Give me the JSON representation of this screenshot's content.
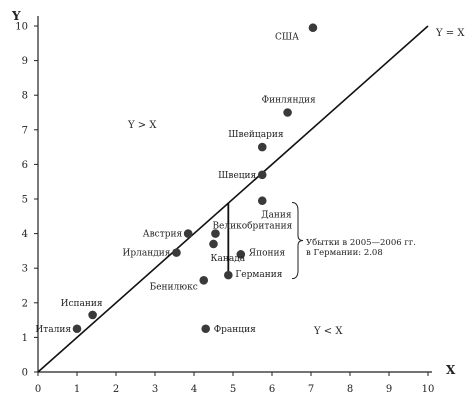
{
  "chart_data": {
    "type": "scatter",
    "xlabel": "X",
    "ylabel": "Y",
    "xlim": [
      0,
      10
    ],
    "ylim": [
      0,
      10
    ],
    "x_ticks": [
      "0",
      "1",
      "2",
      "3",
      "4",
      "5",
      "6",
      "7",
      "8",
      "9",
      "10"
    ],
    "y_ticks": [
      "0",
      "1",
      "2",
      "3",
      "4",
      "5",
      "6",
      "7",
      "8",
      "9",
      "10"
    ],
    "diagonal_label": "Y = X",
    "region_above_label": "Y > X",
    "region_below_label": "Y < X",
    "points": [
      {
        "label": "США",
        "x": 7.05,
        "y": 9.95
      },
      {
        "label": "Финляндия",
        "x": 6.4,
        "y": 7.5
      },
      {
        "label": "Швейцария",
        "x": 5.75,
        "y": 6.5
      },
      {
        "label": "Швеция",
        "x": 5.75,
        "y": 5.7
      },
      {
        "label": "Дания",
        "x": 5.75,
        "y": 4.95
      },
      {
        "label": "Великобритания",
        "x": 4.55,
        "y": 4.0
      },
      {
        "label": "Австрия",
        "x": 3.85,
        "y": 4.0
      },
      {
        "label": "Ирландия",
        "x": 3.55,
        "y": 3.45
      },
      {
        "label": "Канада",
        "x": 4.5,
        "y": 3.7
      },
      {
        "label": "Япония",
        "x": 5.2,
        "y": 3.4
      },
      {
        "label": "Германия",
        "x": 4.88,
        "y": 2.8
      },
      {
        "label": "Бенилюкс",
        "x": 4.25,
        "y": 2.65
      },
      {
        "label": "Испания",
        "x": 1.4,
        "y": 1.65
      },
      {
        "label": "Италия",
        "x": 1.0,
        "y": 1.25
      },
      {
        "label": "Франция",
        "x": 4.3,
        "y": 1.25
      }
    ],
    "germany_loss_segment": {
      "x": 4.88,
      "y_from": 2.8,
      "y_to": 4.88
    },
    "annotation": {
      "lines": [
        "Убытки в 2005—2006 гг.",
        "в Германии: 2.08"
      ],
      "bracket_y": [
        2.7,
        4.9
      ]
    }
  }
}
